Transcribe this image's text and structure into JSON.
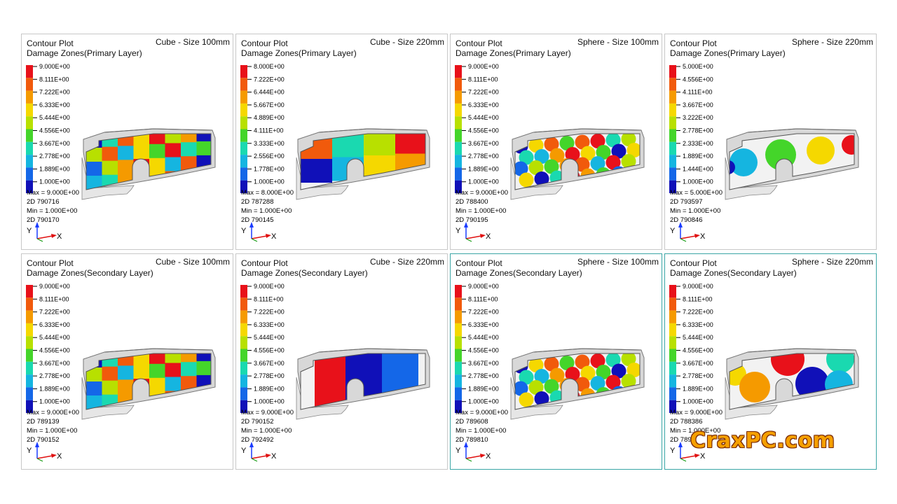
{
  "panels": [
    {
      "id": "p1",
      "title": "Contour Plot",
      "subtitle": "Damage Zones(Primary Layer)",
      "case": "Cube - Size 100mm",
      "legend": [
        "9.000E+00",
        "8.111E+00",
        "7.222E+00",
        "6.333E+00",
        "5.444E+00",
        "4.556E+00",
        "3.667E+00",
        "2.778E+00",
        "1.889E+00",
        "1.000E+00"
      ],
      "max": "Max = 9.000E+00",
      "max_id": "2D 790716",
      "min": "Min = 1.000E+00",
      "min_id": "2D 790170",
      "pattern": "cube-small"
    },
    {
      "id": "p2",
      "title": "Contour Plot",
      "subtitle": "Damage Zones(Primary Layer)",
      "case": "Cube  - Size 220mm",
      "legend": [
        "8.000E+00",
        "7.222E+00",
        "6.444E+00",
        "5.667E+00",
        "4.889E+00",
        "4.111E+00",
        "3.333E+00",
        "2.556E+00",
        "1.778E+00",
        "1.000E+00"
      ],
      "max": "Max = 8.000E+00",
      "max_id": "2D 787288",
      "min": "Min = 1.000E+00",
      "min_id": "2D 790145",
      "pattern": "cube-large"
    },
    {
      "id": "p3",
      "title": "Contour Plot",
      "subtitle": "Damage Zones(Primary Layer)",
      "case": "Sphere  - Size 100mm",
      "legend": [
        "9.000E+00",
        "8.111E+00",
        "7.222E+00",
        "6.333E+00",
        "5.444E+00",
        "4.556E+00",
        "3.667E+00",
        "2.778E+00",
        "1.889E+00",
        "1.000E+00"
      ],
      "max": "Max = 9.000E+00",
      "max_id": "2D 788400",
      "min": "Min = 1.000E+00",
      "min_id": "2D 790195",
      "pattern": "sphere-small"
    },
    {
      "id": "p4",
      "title": "Contour Plot",
      "subtitle": "Damage Zones(Primary Layer)",
      "case": "Sphere  - Size 220mm",
      "legend": [
        "5.000E+00",
        "4.556E+00",
        "4.111E+00",
        "3.667E+00",
        "3.222E+00",
        "2.778E+00",
        "2.333E+00",
        "1.889E+00",
        "1.444E+00",
        "1.000E+00"
      ],
      "max": "Max = 5.000E+00",
      "max_id": "2D 793597",
      "min": "Min = 1.000E+00",
      "min_id": "2D 790846",
      "pattern": "sphere-large"
    },
    {
      "id": "p5",
      "title": "Contour Plot",
      "subtitle": "Damage Zones(Secondary Layer)",
      "case": "Cube - Size 100mm",
      "legend": [
        "9.000E+00",
        "8.111E+00",
        "7.222E+00",
        "6.333E+00",
        "5.444E+00",
        "4.556E+00",
        "3.667E+00",
        "2.778E+00",
        "1.889E+00",
        "1.000E+00"
      ],
      "max": "Max = 9.000E+00",
      "max_id": "2D 789139",
      "min": "Min = 1.000E+00",
      "min_id": "2D 790152",
      "pattern": "cube-small"
    },
    {
      "id": "p6",
      "title": "Contour Plot",
      "subtitle": "Damage Zones(Secondary Layer)",
      "case": "Cube  - Size 220mm",
      "legend": [
        "9.000E+00",
        "8.111E+00",
        "7.222E+00",
        "6.333E+00",
        "5.444E+00",
        "4.556E+00",
        "3.667E+00",
        "2.778E+00",
        "1.889E+00",
        "1.000E+00"
      ],
      "max": "Max = 9.000E+00",
      "max_id": "2D 790152",
      "min": "Min = 1.000E+00",
      "min_id": "2D 792492",
      "pattern": "cube-large-2"
    },
    {
      "id": "p7",
      "title": "Contour Plot",
      "subtitle": "Damage Zones(Secondary Layer)",
      "case": "Sphere  - Size 100mm",
      "legend": [
        "9.000E+00",
        "8.111E+00",
        "7.222E+00",
        "6.333E+00",
        "5.444E+00",
        "4.556E+00",
        "3.667E+00",
        "2.778E+00",
        "1.889E+00",
        "1.000E+00"
      ],
      "max": "Max = 9.000E+00",
      "max_id": "2D 789608",
      "min": "Min = 1.000E+00",
      "min_id": "2D 789810",
      "pattern": "sphere-small"
    },
    {
      "id": "p8",
      "title": "Contour Plot",
      "subtitle": "Damage Zones(Secondary Layer)",
      "case": "Sphere  - Size 220mm",
      "legend": [
        "9.000E+00",
        "8.111E+00",
        "7.222E+00",
        "6.333E+00",
        "5.444E+00",
        "4.556E+00",
        "3.667E+00",
        "2.778E+00",
        "1.889E+00",
        "1.000E+00"
      ],
      "max": "Max = 9.000E+00",
      "max_id": "2D 788386",
      "min": "Min = 1.000E+00",
      "min_id": "2D 789",
      "pattern": "sphere-large-2"
    }
  ],
  "axis": {
    "y": "Y",
    "x": "X"
  },
  "legend_colors": [
    "#e8111a",
    "#f15a0c",
    "#f59a00",
    "#f5d800",
    "#b8e000",
    "#44d52a",
    "#1ad9b0",
    "#15b5e0",
    "#1467e8",
    "#1010b8"
  ],
  "watermark": "CraxPC.com"
}
